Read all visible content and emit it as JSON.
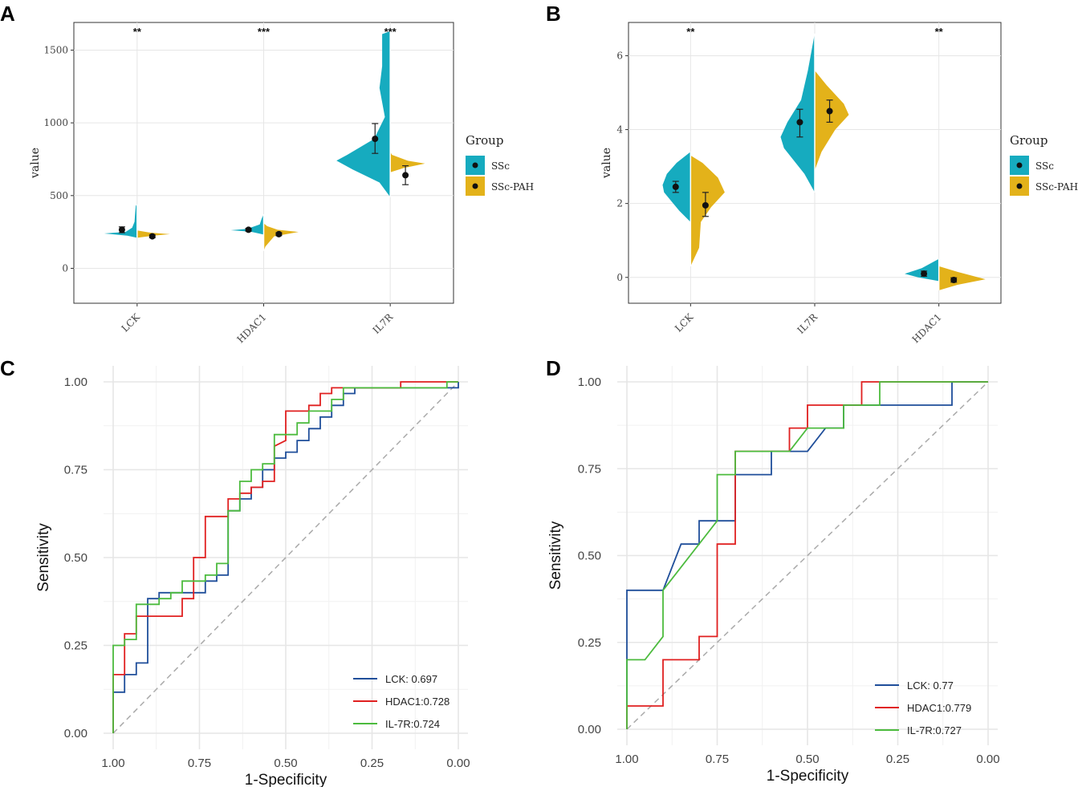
{
  "colors": {
    "ssc": "#16ABBF",
    "sscpah": "#E3B21A",
    "lck": "#1F4E9A",
    "hdac1": "#E02020",
    "il7r": "#4CBB3E",
    "grid": "#E6E6E6",
    "diag": "#AAAAAA"
  },
  "chart_data": [
    {
      "panel": "A",
      "type": "violin",
      "ylabel": "value",
      "ylim": [
        -240,
        1690
      ],
      "yticks": [
        0,
        500,
        1000,
        1500
      ],
      "categories": [
        "LCK",
        "HDAC1",
        "IL7R"
      ],
      "significance": [
        "**",
        "***",
        "***"
      ],
      "legend": {
        "title": "Group",
        "entries": [
          "SSc",
          "SSc-PAH"
        ]
      },
      "series": [
        {
          "name": "SSc",
          "means": [
            265,
            265,
            890
          ],
          "err_low": [
            245,
            255,
            790
          ],
          "err_high": [
            285,
            275,
            995
          ]
        },
        {
          "name": "SSc-PAH",
          "means": [
            220,
            235,
            640
          ],
          "err_low": [
            210,
            225,
            575
          ],
          "err_high": [
            230,
            245,
            705
          ]
        }
      ]
    },
    {
      "panel": "B",
      "type": "violin",
      "ylabel": "value",
      "ylim": [
        -0.7,
        6.9
      ],
      "yticks": [
        0,
        2,
        4,
        6
      ],
      "categories": [
        "LCK",
        "IL7R",
        "HDAC1"
      ],
      "significance": [
        "**",
        "",
        "**"
      ],
      "legend": {
        "title": "Group",
        "entries": [
          "SSc",
          "SSc-PAH"
        ]
      },
      "series": [
        {
          "name": "SSc",
          "means": [
            2.45,
            4.2,
            0.1
          ],
          "err_low": [
            2.3,
            3.8,
            0.03
          ],
          "err_high": [
            2.6,
            4.55,
            0.17
          ]
        },
        {
          "name": "SSc-PAH",
          "means": [
            1.95,
            4.5,
            -0.07
          ],
          "err_low": [
            1.65,
            4.2,
            -0.13
          ],
          "err_high": [
            2.3,
            4.8,
            -0.01
          ]
        }
      ]
    },
    {
      "panel": "C",
      "type": "line",
      "xlabel": "1-Specificity",
      "ylabel": "Sensitivity",
      "xticks": [
        "1.00",
        "0.75",
        "0.50",
        "0.25",
        "0.00"
      ],
      "yticks": [
        "0.00",
        "0.25",
        "0.50",
        "0.75",
        "1.00"
      ],
      "legend": [
        "LCK:  0.697",
        "HDAC1:0.728",
        "IL-7R:0.724"
      ],
      "series": [
        {
          "name": "LCK",
          "points": [
            [
              1,
              0
            ],
            [
              1,
              0.117
            ],
            [
              0.967,
              0.117
            ],
            [
              0.967,
              0.167
            ],
            [
              0.933,
              0.167
            ],
            [
              0.933,
              0.2
            ],
            [
              0.9,
              0.2
            ],
            [
              0.9,
              0.383
            ],
            [
              0.867,
              0.383
            ],
            [
              0.867,
              0.4
            ],
            [
              0.733,
              0.4
            ],
            [
              0.733,
              0.433
            ],
            [
              0.7,
              0.433
            ],
            [
              0.7,
              0.45
            ],
            [
              0.667,
              0.45
            ],
            [
              0.667,
              0.633
            ],
            [
              0.633,
              0.633
            ],
            [
              0.633,
              0.667
            ],
            [
              0.6,
              0.667
            ],
            [
              0.6,
              0.7
            ],
            [
              0.567,
              0.7
            ],
            [
              0.567,
              0.75
            ],
            [
              0.533,
              0.75
            ],
            [
              0.533,
              0.783
            ],
            [
              0.5,
              0.783
            ],
            [
              0.5,
              0.8
            ],
            [
              0.467,
              0.8
            ],
            [
              0.467,
              0.833
            ],
            [
              0.433,
              0.833
            ],
            [
              0.433,
              0.867
            ],
            [
              0.4,
              0.867
            ],
            [
              0.4,
              0.9
            ],
            [
              0.367,
              0.9
            ],
            [
              0.367,
              0.933
            ],
            [
              0.333,
              0.933
            ],
            [
              0.333,
              0.967
            ],
            [
              0.3,
              0.967
            ],
            [
              0.3,
              0.983
            ],
            [
              0.267,
              0.983
            ],
            [
              0,
              0.983
            ],
            [
              0,
              1
            ]
          ]
        },
        {
          "name": "HDAC1",
          "points": [
            [
              1,
              0
            ],
            [
              1,
              0.167
            ],
            [
              0.967,
              0.167
            ],
            [
              0.967,
              0.283
            ],
            [
              0.933,
              0.283
            ],
            [
              0.933,
              0.333
            ],
            [
              0.8,
              0.333
            ],
            [
              0.8,
              0.383
            ],
            [
              0.767,
              0.383
            ],
            [
              0.767,
              0.5
            ],
            [
              0.733,
              0.5
            ],
            [
              0.733,
              0.617
            ],
            [
              0.667,
              0.617
            ],
            [
              0.667,
              0.667
            ],
            [
              0.633,
              0.667
            ],
            [
              0.633,
              0.683
            ],
            [
              0.6,
              0.683
            ],
            [
              0.6,
              0.7
            ],
            [
              0.567,
              0.7
            ],
            [
              0.567,
              0.717
            ],
            [
              0.533,
              0.717
            ],
            [
              0.533,
              0.817
            ],
            [
              0.5,
              0.833
            ],
            [
              0.5,
              0.917
            ],
            [
              0.433,
              0.917
            ],
            [
              0.433,
              0.933
            ],
            [
              0.4,
              0.933
            ],
            [
              0.4,
              0.967
            ],
            [
              0.367,
              0.967
            ],
            [
              0.367,
              0.983
            ],
            [
              0.167,
              0.983
            ],
            [
              0.167,
              1
            ],
            [
              0,
              1
            ]
          ]
        },
        {
          "name": "IL-7R",
          "points": [
            [
              1,
              0
            ],
            [
              1,
              0.25
            ],
            [
              0.967,
              0.25
            ],
            [
              0.967,
              0.267
            ],
            [
              0.933,
              0.267
            ],
            [
              0.933,
              0.367
            ],
            [
              0.867,
              0.367
            ],
            [
              0.867,
              0.383
            ],
            [
              0.833,
              0.383
            ],
            [
              0.833,
              0.4
            ],
            [
              0.8,
              0.4
            ],
            [
              0.8,
              0.433
            ],
            [
              0.733,
              0.433
            ],
            [
              0.733,
              0.45
            ],
            [
              0.7,
              0.45
            ],
            [
              0.7,
              0.483
            ],
            [
              0.667,
              0.483
            ],
            [
              0.667,
              0.633
            ],
            [
              0.633,
              0.633
            ],
            [
              0.633,
              0.717
            ],
            [
              0.6,
              0.717
            ],
            [
              0.6,
              0.75
            ],
            [
              0.567,
              0.75
            ],
            [
              0.567,
              0.767
            ],
            [
              0.533,
              0.767
            ],
            [
              0.533,
              0.85
            ],
            [
              0.467,
              0.85
            ],
            [
              0.467,
              0.883
            ],
            [
              0.433,
              0.883
            ],
            [
              0.433,
              0.917
            ],
            [
              0.367,
              0.917
            ],
            [
              0.367,
              0.95
            ],
            [
              0.333,
              0.95
            ],
            [
              0.333,
              0.983
            ],
            [
              0.033,
              0.983
            ],
            [
              0.033,
              1
            ],
            [
              0,
              1
            ]
          ]
        }
      ]
    },
    {
      "panel": "D",
      "type": "line",
      "xlabel": "1-Specificity",
      "ylabel": "Sensitivity",
      "xticks": [
        "1.00",
        "0.75",
        "0.50",
        "0.25",
        "0.00"
      ],
      "yticks": [
        "0.00",
        "0.25",
        "0.50",
        "0.75",
        "1.00"
      ],
      "legend": [
        "LCK:  0.77",
        "HDAC1:0.779",
        "IL-7R:0.727"
      ],
      "series": [
        {
          "name": "LCK",
          "points": [
            [
              1,
              0
            ],
            [
              1,
              0.4
            ],
            [
              0.9,
              0.4
            ],
            [
              0.85,
              0.533
            ],
            [
              0.8,
              0.533
            ],
            [
              0.8,
              0.6
            ],
            [
              0.7,
              0.6
            ],
            [
              0.7,
              0.733
            ],
            [
              0.6,
              0.733
            ],
            [
              0.6,
              0.8
            ],
            [
              0.5,
              0.8
            ],
            [
              0.45,
              0.867
            ],
            [
              0.4,
              0.867
            ],
            [
              0.4,
              0.933
            ],
            [
              0.1,
              0.933
            ],
            [
              0.1,
              1
            ],
            [
              0,
              1
            ]
          ]
        },
        {
          "name": "HDAC1",
          "points": [
            [
              1,
              0
            ],
            [
              1,
              0.067
            ],
            [
              0.9,
              0.067
            ],
            [
              0.9,
              0.2
            ],
            [
              0.8,
              0.2
            ],
            [
              0.8,
              0.267
            ],
            [
              0.75,
              0.267
            ],
            [
              0.75,
              0.533
            ],
            [
              0.7,
              0.533
            ],
            [
              0.7,
              0.8
            ],
            [
              0.55,
              0.8
            ],
            [
              0.55,
              0.867
            ],
            [
              0.5,
              0.867
            ],
            [
              0.5,
              0.933
            ],
            [
              0.35,
              0.933
            ],
            [
              0.35,
              1
            ],
            [
              0,
              1
            ]
          ]
        },
        {
          "name": "IL-7R",
          "points": [
            [
              1,
              0
            ],
            [
              1,
              0.2
            ],
            [
              0.95,
              0.2
            ],
            [
              0.9,
              0.267
            ],
            [
              0.9,
              0.4
            ],
            [
              0.75,
              0.6
            ],
            [
              0.75,
              0.733
            ],
            [
              0.7,
              0.733
            ],
            [
              0.7,
              0.8
            ],
            [
              0.55,
              0.8
            ],
            [
              0.5,
              0.867
            ],
            [
              0.4,
              0.867
            ],
            [
              0.4,
              0.933
            ],
            [
              0.3,
              0.933
            ],
            [
              0.3,
              1
            ],
            [
              0,
              1
            ]
          ]
        }
      ]
    }
  ],
  "panel_labels": [
    "A",
    "B",
    "C",
    "D"
  ]
}
